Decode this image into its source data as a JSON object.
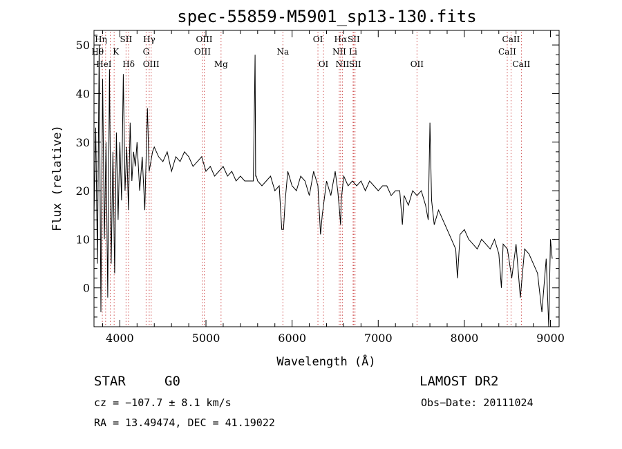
{
  "chart_data": {
    "type": "line",
    "title": "spec-55859-M5901_sp13-130.fits",
    "xlabel": "Wavelength (Å)",
    "ylabel": "Flux (relative)",
    "xlim": [
      3700,
      9100
    ],
    "ylim": [
      -8,
      53
    ],
    "xticks": [
      4000,
      5000,
      6000,
      7000,
      8000,
      9000
    ],
    "yticks": [
      0,
      10,
      20,
      30,
      40,
      50
    ],
    "grid": false,
    "series": [
      {
        "x": [
          3700,
          3720,
          3740,
          3760,
          3780,
          3800,
          3820,
          3840,
          3860,
          3880,
          3900,
          3920,
          3940,
          3960,
          3980,
          4000,
          4020,
          4040,
          4060,
          4080,
          4100,
          4120,
          4140,
          4160,
          4180,
          4200,
          4230,
          4260,
          4290,
          4320,
          4340,
          4360,
          4380,
          4400,
          4450,
          4500,
          4550,
          4600,
          4650,
          4700,
          4750,
          4800,
          4850,
          4900,
          4950,
          5000,
          5050,
          5100,
          5150,
          5200,
          5250,
          5300,
          5350,
          5400,
          5450,
          5500,
          5550,
          5570,
          5577,
          5585,
          5600,
          5650,
          5700,
          5750,
          5800,
          5850,
          5880,
          5900,
          5920,
          5950,
          6000,
          6050,
          6100,
          6150,
          6200,
          6250,
          6300,
          6330,
          6350,
          6400,
          6450,
          6500,
          6530,
          6550,
          6563,
          6570,
          6600,
          6650,
          6700,
          6750,
          6800,
          6850,
          6900,
          6950,
          7000,
          7050,
          7100,
          7150,
          7200,
          7250,
          7280,
          7300,
          7350,
          7400,
          7450,
          7500,
          7550,
          7580,
          7600,
          7620,
          7650,
          7700,
          7750,
          7800,
          7850,
          7900,
          7920,
          7950,
          8000,
          8050,
          8100,
          8150,
          8200,
          8250,
          8300,
          8350,
          8400,
          8430,
          8450,
          8500,
          8550,
          8600,
          8650,
          8700,
          8750,
          8800,
          8850,
          8900,
          8950,
          8980,
          9000,
          9020
        ],
        "y": [
          15,
          33,
          5,
          50,
          -5,
          43,
          10,
          30,
          -2,
          45,
          5,
          28,
          3,
          32,
          14,
          30,
          18,
          44,
          20,
          29,
          16,
          34,
          22,
          28,
          25,
          30,
          20,
          27,
          16,
          37,
          24,
          26,
          28,
          29,
          27,
          26,
          28,
          24,
          27,
          26,
          28,
          27,
          25,
          26,
          27,
          24,
          25,
          23,
          24,
          25,
          23,
          24,
          22,
          23,
          22,
          22,
          22,
          48,
          23,
          23,
          22,
          21,
          22,
          23,
          20,
          21,
          12,
          12,
          18,
          24,
          21,
          20,
          23,
          22,
          19,
          24,
          21,
          11,
          15,
          22,
          19,
          24,
          20,
          16,
          13,
          18,
          23,
          21,
          22,
          21,
          22,
          20,
          22,
          21,
          20,
          21,
          21,
          19,
          20,
          20,
          13,
          19,
          17,
          20,
          19,
          20,
          17,
          14,
          34,
          18,
          13,
          16,
          14,
          12,
          10,
          8,
          2,
          11,
          12,
          10,
          9,
          8,
          10,
          9,
          8,
          10,
          7,
          0,
          9,
          8,
          2,
          9,
          -2,
          8,
          7,
          5,
          3,
          -5,
          6,
          -8,
          10,
          6
        ]
      }
    ],
    "line_markers": [
      {
        "label": "Hη",
        "x": 3835,
        "row": 1,
        "side": "left"
      },
      {
        "label": "Hθ",
        "x": 3797,
        "row": 2,
        "side": "left"
      },
      {
        "label": "K",
        "x": 3934,
        "row": 2,
        "side": "right"
      },
      {
        "label": "HeI",
        "x": 3889,
        "row": 3,
        "side": "left"
      },
      {
        "label": "SII",
        "x": 4072,
        "row": 1,
        "side": "center"
      },
      {
        "label": "Hδ",
        "x": 4102,
        "row": 3,
        "side": "center"
      },
      {
        "label": "Hγ",
        "x": 4341,
        "row": 1,
        "side": "center"
      },
      {
        "label": "G",
        "x": 4305,
        "row": 2,
        "side": "center"
      },
      {
        "label": "OIII",
        "x": 4364,
        "row": 3,
        "side": "center"
      },
      {
        "label": "OIII",
        "x": 4980,
        "row": 1,
        "side": "center"
      },
      {
        "label": "OIII",
        "x": 4959,
        "row": 2,
        "side": "center"
      },
      {
        "label": "Mg",
        "x": 5175,
        "row": 3,
        "side": "center"
      },
      {
        "label": "Na",
        "x": 5893,
        "row": 2,
        "side": "center"
      },
      {
        "label": "OI",
        "x": 6300,
        "row": 1,
        "side": "center"
      },
      {
        "label": "OI",
        "x": 6364,
        "row": 3,
        "side": "center"
      },
      {
        "label": "Hα",
        "x": 6563,
        "row": 1,
        "side": "center"
      },
      {
        "label": "SII",
        "x": 6716,
        "row": 1,
        "side": "center"
      },
      {
        "label": "NII",
        "x": 6548,
        "row": 2,
        "side": "center"
      },
      {
        "label": "Li",
        "x": 6708,
        "row": 2,
        "side": "center"
      },
      {
        "label": "NII",
        "x": 6584,
        "row": 3,
        "side": "center"
      },
      {
        "label": "SII",
        "x": 6731,
        "row": 3,
        "side": "center"
      },
      {
        "label": "OII",
        "x": 7450,
        "row": 3,
        "side": "center"
      },
      {
        "label": "CaII",
        "x": 8542,
        "row": 1,
        "side": "center"
      },
      {
        "label": "CaII",
        "x": 8498,
        "row": 2,
        "side": "center"
      },
      {
        "label": "CaII",
        "x": 8662,
        "row": 3,
        "side": "center"
      }
    ]
  },
  "info": {
    "object_class": "STAR",
    "subclass": "G0",
    "survey": "LAMOST DR2",
    "cz": "cz = −107.7 ± 8.1 km/s",
    "obs_date": "Obs−Date: 20111024",
    "coords": "RA =  13.49474, DEC =  41.19022"
  }
}
